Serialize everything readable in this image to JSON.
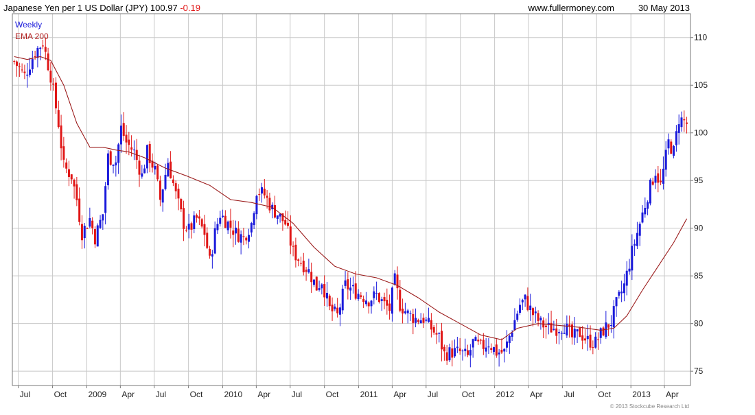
{
  "header": {
    "title": "Japanese Yen per 1 US Dollar (JPY)",
    "last_value": "100.97",
    "change": "-0.19",
    "source": "www.fullermoney.com",
    "date": "30 May 2013",
    "copyright": "© 2013 Stockcube Research Ltd"
  },
  "legend": {
    "series_label": "Weekly",
    "ema_label": "EMA 200"
  },
  "colors": {
    "up": "#1a1adb",
    "down": "#e01616",
    "ema": "#9b1b1b",
    "grid": "#c8c8c8",
    "frame": "#777777",
    "text": "#222222",
    "change_text": "#e01616",
    "legend_weekly": "#1a1adb",
    "legend_ema": "#b22222"
  },
  "chart_data": {
    "type": "candlestick",
    "frequency": "weekly",
    "x_axis": {
      "ticks": [
        {
          "label": "Jul",
          "date": "2008-07-01"
        },
        {
          "label": "Oct",
          "date": "2008-10-01"
        },
        {
          "label": "2009",
          "date": "2009-01-01"
        },
        {
          "label": "Apr",
          "date": "2009-04-01"
        },
        {
          "label": "Jul",
          "date": "2009-07-01"
        },
        {
          "label": "Oct",
          "date": "2009-10-01"
        },
        {
          "label": "2010",
          "date": "2010-01-01"
        },
        {
          "label": "Apr",
          "date": "2010-04-01"
        },
        {
          "label": "Jul",
          "date": "2010-07-01"
        },
        {
          "label": "Oct",
          "date": "2010-10-01"
        },
        {
          "label": "2011",
          "date": "2011-01-01"
        },
        {
          "label": "Apr",
          "date": "2011-04-01"
        },
        {
          "label": "Jul",
          "date": "2011-07-01"
        },
        {
          "label": "Oct",
          "date": "2011-10-01"
        },
        {
          "label": "2012",
          "date": "2012-01-01"
        },
        {
          "label": "Apr",
          "date": "2012-04-01"
        },
        {
          "label": "Jul",
          "date": "2012-07-01"
        },
        {
          "label": "Oct",
          "date": "2012-10-01"
        },
        {
          "label": "2013",
          "date": "2013-01-01"
        },
        {
          "label": "Apr",
          "date": "2013-04-01"
        }
      ],
      "range": [
        "2008-06-15",
        "2013-06-10"
      ]
    },
    "y_axis": {
      "ticks": [
        75,
        80,
        85,
        90,
        95,
        100,
        105,
        110
      ],
      "range": [
        73.5,
        112.5
      ],
      "position": "right"
    },
    "grid": true,
    "price_path": [
      [
        "2008-06-20",
        107.5
      ],
      [
        "2008-07-18",
        106.0
      ],
      [
        "2008-08-15",
        108.5
      ],
      [
        "2008-09-05",
        109.5
      ],
      [
        "2008-09-26",
        106.0
      ],
      [
        "2008-10-17",
        101.0
      ],
      [
        "2008-10-31",
        96.5
      ],
      [
        "2008-11-21",
        95.5
      ],
      [
        "2008-12-05",
        93.0
      ],
      [
        "2008-12-19",
        89.5
      ],
      [
        "2009-01-09",
        91.0
      ],
      [
        "2009-01-23",
        89.0
      ],
      [
        "2009-02-13",
        91.5
      ],
      [
        "2009-02-27",
        97.5
      ],
      [
        "2009-03-20",
        97.0
      ],
      [
        "2009-04-03",
        100.5
      ],
      [
        "2009-04-17",
        99.0
      ],
      [
        "2009-05-08",
        98.0
      ],
      [
        "2009-05-29",
        95.5
      ],
      [
        "2009-06-12",
        98.0
      ],
      [
        "2009-07-03",
        96.0
      ],
      [
        "2009-07-17",
        93.0
      ],
      [
        "2009-08-07",
        97.0
      ],
      [
        "2009-08-28",
        93.5
      ],
      [
        "2009-09-18",
        90.5
      ],
      [
        "2009-10-02",
        89.8
      ],
      [
        "2009-10-23",
        91.0
      ],
      [
        "2009-11-13",
        89.5
      ],
      [
        "2009-11-27",
        86.5
      ],
      [
        "2009-12-11",
        89.5
      ],
      [
        "2009-12-25",
        91.5
      ],
      [
        "2010-01-15",
        90.5
      ],
      [
        "2010-02-05",
        89.5
      ],
      [
        "2010-02-26",
        89.0
      ],
      [
        "2010-03-19",
        90.5
      ],
      [
        "2010-04-02",
        94.0
      ],
      [
        "2010-04-23",
        93.5
      ],
      [
        "2010-05-14",
        92.0
      ],
      [
        "2010-05-28",
        91.5
      ],
      [
        "2010-06-18",
        90.5
      ],
      [
        "2010-07-09",
        87.5
      ],
      [
        "2010-07-30",
        86.5
      ],
      [
        "2010-08-20",
        85.5
      ],
      [
        "2010-09-10",
        83.8
      ],
      [
        "2010-09-24",
        84.5
      ],
      [
        "2010-10-15",
        81.5
      ],
      [
        "2010-11-05",
        80.8
      ],
      [
        "2010-11-26",
        84.0
      ],
      [
        "2010-12-17",
        83.5
      ],
      [
        "2011-01-07",
        83.0
      ],
      [
        "2011-01-28",
        82.5
      ],
      [
        "2011-02-18",
        83.0
      ],
      [
        "2011-03-11",
        82.0
      ],
      [
        "2011-03-25",
        81.5
      ],
      [
        "2011-04-08",
        84.5
      ],
      [
        "2011-04-22",
        82.0
      ],
      [
        "2011-05-13",
        81.0
      ],
      [
        "2011-06-03",
        80.5
      ],
      [
        "2011-06-24",
        80.5
      ],
      [
        "2011-07-15",
        79.5
      ],
      [
        "2011-08-05",
        78.5
      ],
      [
        "2011-08-19",
        76.8
      ],
      [
        "2011-09-09",
        77.0
      ],
      [
        "2011-09-30",
        77.0
      ],
      [
        "2011-10-21",
        76.5
      ],
      [
        "2011-11-04",
        78.0
      ],
      [
        "2011-11-25",
        77.5
      ],
      [
        "2011-12-16",
        78.0
      ],
      [
        "2012-01-06",
        77.0
      ],
      [
        "2012-01-27",
        77.0
      ],
      [
        "2012-02-17",
        79.5
      ],
      [
        "2012-03-09",
        82.0
      ],
      [
        "2012-03-23",
        82.5
      ],
      [
        "2012-04-13",
        81.0
      ],
      [
        "2012-05-04",
        80.0
      ],
      [
        "2012-05-25",
        79.5
      ],
      [
        "2012-06-15",
        79.5
      ],
      [
        "2012-07-06",
        79.8
      ],
      [
        "2012-07-27",
        78.5
      ],
      [
        "2012-08-17",
        79.0
      ],
      [
        "2012-09-07",
        78.2
      ],
      [
        "2012-09-28",
        78.0
      ],
      [
        "2012-10-19",
        79.3
      ],
      [
        "2012-11-09",
        80.2
      ],
      [
        "2012-11-23",
        82.0
      ],
      [
        "2012-12-14",
        84.0
      ],
      [
        "2013-01-04",
        87.5
      ],
      [
        "2013-01-25",
        90.5
      ],
      [
        "2013-02-15",
        93.5
      ],
      [
        "2013-03-08",
        96.0
      ],
      [
        "2013-03-22",
        94.5
      ],
      [
        "2013-04-12",
        99.0
      ],
      [
        "2013-04-26",
        98.0
      ],
      [
        "2013-05-10",
        101.5
      ],
      [
        "2013-05-24",
        101.2
      ],
      [
        "2013-05-31",
        100.97
      ]
    ],
    "ema200_path": [
      [
        "2008-06-20",
        108.0
      ],
      [
        "2008-07-25",
        107.7
      ],
      [
        "2008-08-29",
        108.0
      ],
      [
        "2008-09-26",
        107.6
      ],
      [
        "2008-10-31",
        105.0
      ],
      [
        "2008-12-05",
        101.0
      ],
      [
        "2009-01-09",
        98.5
      ],
      [
        "2009-02-13",
        98.5
      ],
      [
        "2009-03-20",
        98.2
      ],
      [
        "2009-04-24",
        98.0
      ],
      [
        "2009-06-05",
        97.4
      ],
      [
        "2009-07-31",
        96.3
      ],
      [
        "2009-09-25",
        95.5
      ],
      [
        "2009-11-27",
        94.5
      ],
      [
        "2010-01-22",
        93.0
      ],
      [
        "2010-03-19",
        92.7
      ],
      [
        "2010-05-14",
        92.2
      ],
      [
        "2010-07-09",
        90.5
      ],
      [
        "2010-09-03",
        88.0
      ],
      [
        "2010-10-29",
        86.0
      ],
      [
        "2010-12-24",
        85.2
      ],
      [
        "2011-02-18",
        84.8
      ],
      [
        "2011-04-15",
        84.0
      ],
      [
        "2011-06-10",
        82.7
      ],
      [
        "2011-08-05",
        81.2
      ],
      [
        "2011-09-30",
        80.0
      ],
      [
        "2011-11-25",
        78.8
      ],
      [
        "2012-01-20",
        78.3
      ],
      [
        "2012-03-02",
        79.5
      ],
      [
        "2012-04-27",
        80.0
      ],
      [
        "2012-06-22",
        79.8
      ],
      [
        "2012-08-17",
        79.6
      ],
      [
        "2012-10-12",
        79.3
      ],
      [
        "2012-11-16",
        79.5
      ],
      [
        "2012-12-21",
        80.8
      ],
      [
        "2013-02-01",
        83.5
      ],
      [
        "2013-03-15",
        86.0
      ],
      [
        "2013-04-26",
        88.5
      ],
      [
        "2013-05-31",
        91.0
      ]
    ],
    "ohlc_weekly": "synthesised from price_path (blue = up week, red = down week)"
  }
}
